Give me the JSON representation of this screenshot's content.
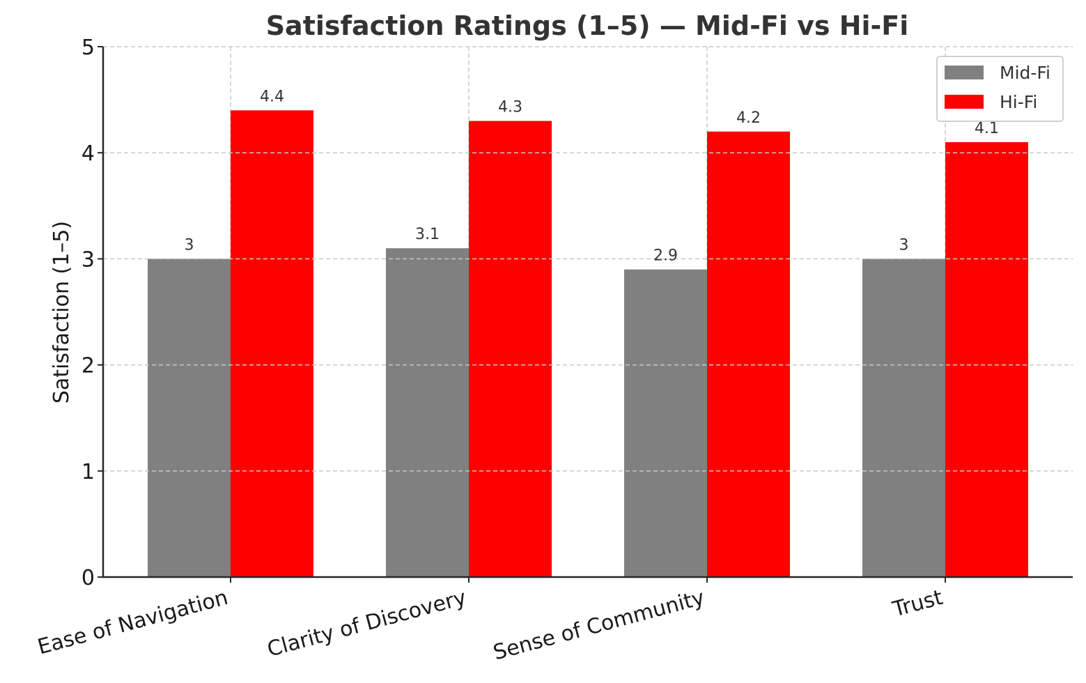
{
  "chart_data": {
    "type": "bar",
    "title": "Satisfaction Ratings (1–5) — Mid-Fi vs Hi-Fi",
    "xlabel": "",
    "ylabel": "Satisfaction (1–5)",
    "ylim": [
      0,
      5
    ],
    "yticks": [
      0,
      1,
      2,
      3,
      4,
      5
    ],
    "grid": true,
    "legend_position": "top-right",
    "categories": [
      "Ease of Navigation",
      "Clarity of Discovery",
      "Sense of Community",
      "Trust"
    ],
    "series": [
      {
        "name": "Mid-Fi",
        "color": "#808080",
        "values": [
          3,
          3.1,
          2.9,
          3
        ],
        "labels": [
          "3",
          "3.1",
          "2.9",
          "3"
        ]
      },
      {
        "name": "Hi-Fi",
        "color": "#ff0000",
        "values": [
          4.4,
          4.3,
          4.2,
          4.1
        ],
        "labels": [
          "4.4",
          "4.3",
          "4.2",
          "4.1"
        ]
      }
    ]
  }
}
